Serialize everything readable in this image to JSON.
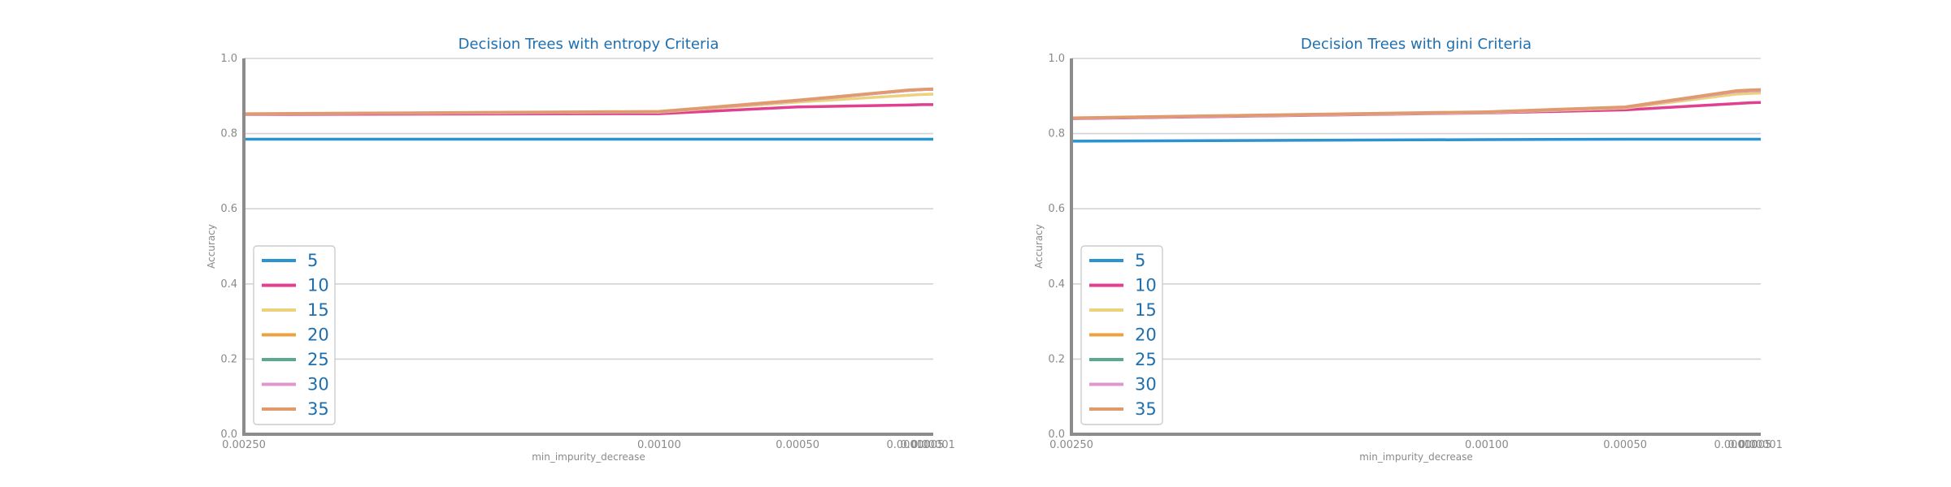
{
  "chart_data": [
    {
      "type": "line",
      "title": "Decision Trees with entropy Criteria",
      "xlabel": "min_impurity_decrease",
      "ylabel": "Accuracy",
      "ylim": [
        0.0,
        1.0
      ],
      "yticks": [
        "0.0",
        "0.2",
        "0.4",
        "0.6",
        "0.8",
        "1.0"
      ],
      "xticks": [
        "0.00250",
        "0.00100",
        "0.00050",
        "0.00010",
        "0.00005",
        "0.00001"
      ],
      "x": [
        0.0025,
        0.001,
        0.0005,
        0.0001,
        5e-05,
        1e-05
      ],
      "grid": true,
      "legend_position": "lower-left",
      "series": [
        {
          "name": "5",
          "color": "#2a93d0",
          "values": [
            0.785,
            0.785,
            0.785,
            0.785,
            0.785,
            0.785
          ]
        },
        {
          "name": "10",
          "color": "#e0408f",
          "values": [
            0.851,
            0.853,
            0.871,
            0.876,
            0.877,
            0.877
          ]
        },
        {
          "name": "15",
          "color": "#edd27e",
          "values": [
            0.852,
            0.857,
            0.884,
            0.902,
            0.904,
            0.905
          ]
        },
        {
          "name": "20",
          "color": "#eaa245",
          "values": [
            0.852,
            0.858,
            0.888,
            0.915,
            0.917,
            0.918
          ]
        },
        {
          "name": "25",
          "color": "#5aa890",
          "values": [
            0.852,
            0.858,
            0.888,
            0.915,
            0.917,
            0.918
          ]
        },
        {
          "name": "30",
          "color": "#df98cf",
          "values": [
            0.852,
            0.858,
            0.888,
            0.915,
            0.917,
            0.918
          ]
        },
        {
          "name": "35",
          "color": "#e19a6b",
          "values": [
            0.853,
            0.859,
            0.889,
            0.916,
            0.918,
            0.919
          ]
        }
      ]
    },
    {
      "type": "line",
      "title": "Decision Trees with gini Criteria",
      "xlabel": "min_impurity_decrease",
      "ylabel": "Accuracy",
      "ylim": [
        0.0,
        1.0
      ],
      "yticks": [
        "0.0",
        "0.2",
        "0.4",
        "0.6",
        "0.8",
        "1.0"
      ],
      "xticks": [
        "0.00250",
        "0.00100",
        "0.00050",
        "0.00010",
        "0.00005",
        "0.00001"
      ],
      "x": [
        0.0025,
        0.001,
        0.0005,
        0.0001,
        5e-05,
        1e-05
      ],
      "grid": true,
      "legend_position": "lower-left",
      "series": [
        {
          "name": "5",
          "color": "#2a93d0",
          "values": [
            0.78,
            0.784,
            0.785,
            0.785,
            0.785,
            0.785
          ]
        },
        {
          "name": "10",
          "color": "#e0408f",
          "values": [
            0.84,
            0.855,
            0.863,
            0.88,
            0.882,
            0.883
          ]
        },
        {
          "name": "15",
          "color": "#edd27e",
          "values": [
            0.841,
            0.856,
            0.868,
            0.905,
            0.907,
            0.908
          ]
        },
        {
          "name": "20",
          "color": "#eaa245",
          "values": [
            0.841,
            0.857,
            0.87,
            0.912,
            0.914,
            0.915
          ]
        },
        {
          "name": "25",
          "color": "#5aa890",
          "values": [
            0.841,
            0.857,
            0.87,
            0.912,
            0.914,
            0.915
          ]
        },
        {
          "name": "30",
          "color": "#df98cf",
          "values": [
            0.841,
            0.857,
            0.87,
            0.912,
            0.914,
            0.915
          ]
        },
        {
          "name": "35",
          "color": "#e19a6b",
          "values": [
            0.842,
            0.858,
            0.871,
            0.914,
            0.916,
            0.917
          ]
        }
      ]
    }
  ]
}
